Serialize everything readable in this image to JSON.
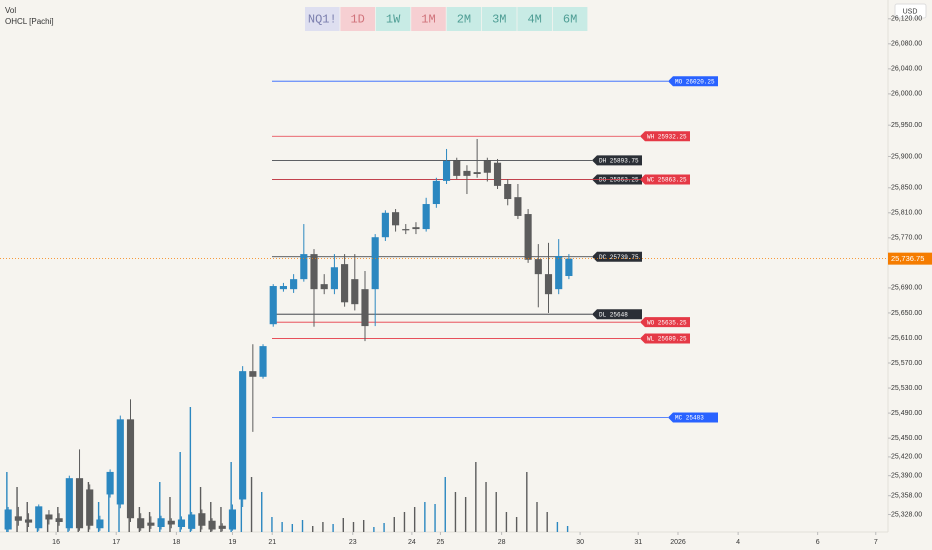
{
  "chart_data": {
    "type": "candlestick",
    "indicators": [
      "Vol",
      "OHCL [Pachi]"
    ],
    "currency": "USD",
    "toolbar": [
      {
        "label": "NQ1!",
        "background": "#dedff0",
        "color": "#7b7fae"
      },
      {
        "label": "1D",
        "background": "#f6cfd2",
        "color": "#d0737b"
      },
      {
        "label": "1W",
        "background": "#c8ebe5",
        "color": "#4f9e95"
      },
      {
        "label": "1M",
        "background": "#f6cfd2",
        "color": "#d0737b"
      },
      {
        "label": "2M",
        "background": "#c8ebe5",
        "color": "#4f9e95"
      },
      {
        "label": "3M",
        "background": "#c8ebe5",
        "color": "#4f9e95"
      },
      {
        "label": "4M",
        "background": "#c8ebe5",
        "color": "#4f9e95"
      },
      {
        "label": "6M",
        "background": "#c8ebe5",
        "color": "#4f9e95"
      }
    ],
    "x": [
      0,
      1,
      2,
      3,
      4,
      5,
      6,
      7,
      8,
      9,
      10,
      11,
      12,
      13,
      14,
      15,
      16,
      17,
      18,
      19,
      20,
      21,
      22,
      23,
      24,
      25,
      26,
      27,
      28,
      29,
      30,
      31,
      32,
      33,
      34,
      35,
      36,
      37,
      38,
      39,
      40,
      41,
      42,
      43,
      44,
      45,
      46,
      47,
      48,
      49,
      50,
      51,
      52,
      53,
      54,
      55
    ],
    "open": [
      25304,
      25325,
      25320,
      25306,
      25328,
      25322,
      25306,
      25386,
      25368,
      25306,
      25360,
      25344,
      25480,
      25322,
      25315,
      25308,
      25318,
      25308,
      25305,
      25330,
      25318,
      25310,
      25304,
      25352,
      25557,
      25548,
      25632,
      25688,
      25688,
      25704,
      25744,
      25696,
      25688,
      25728,
      25704,
      25688,
      25688,
      25771,
      25811,
      25784,
      25787,
      25784,
      25824,
      25861,
      25894,
      25877,
      25875,
      25894,
      25890,
      25856,
      25835,
      25808,
      25736,
      25712,
      25688,
      25709
    ],
    "high": [
      25340,
      25340,
      25330,
      25344,
      25335,
      25330,
      25390,
      25432,
      25376,
      25326,
      25400,
      25486,
      25512,
      25330,
      25325,
      25326,
      25322,
      25325,
      25332,
      25336,
      25322,
      25314,
      25344,
      25565,
      25600,
      25600,
      25696,
      25698,
      25712,
      25792,
      25752,
      25712,
      25744,
      25744,
      25744,
      25717,
      25776,
      25814,
      25816,
      25792,
      25795,
      25834,
      25866,
      25912,
      25898,
      25886,
      25928,
      25898,
      25896,
      25864,
      25856,
      25816,
      25760,
      25762,
      25768,
      25744
    ],
    "low": [
      25300,
      25310,
      25308,
      25302,
      25312,
      25310,
      25302,
      25302,
      25304,
      25302,
      25355,
      25338,
      25316,
      25302,
      25305,
      25304,
      25306,
      25304,
      25302,
      25304,
      25301,
      25301,
      25302,
      25340,
      25460,
      25545,
      25628,
      25684,
      25682,
      25700,
      25628,
      25680,
      25680,
      25660,
      25654,
      25605,
      25629,
      25765,
      25780,
      25776,
      25776,
      25780,
      25818,
      25856,
      25864,
      25840,
      25866,
      25860,
      25848,
      25822,
      25800,
      25730,
      25659,
      25650,
      25680,
      25704
    ],
    "close": [
      25336,
      25318,
      25315,
      25341,
      25320,
      25316,
      25386,
      25306,
      25310,
      25320,
      25396,
      25480,
      25322,
      25306,
      25310,
      25322,
      25312,
      25320,
      25328,
      25310,
      25304,
      25305,
      25336,
      25557,
      25548,
      25597,
      25693,
      25693,
      25704,
      25744,
      25688,
      25688,
      25723,
      25667,
      25664,
      25629,
      25771,
      25810,
      25790,
      25782,
      25784,
      25824,
      25861,
      25893,
      25869,
      25869,
      25872,
      25874,
      25853,
      25832,
      25805,
      25735,
      25712,
      25680,
      25741,
      25736.75
    ],
    "volume": [
      60,
      45,
      30,
      20,
      15,
      25,
      40,
      35,
      50,
      30,
      45,
      55,
      60,
      25,
      20,
      50,
      35,
      80,
      125,
      45,
      30,
      25,
      70,
      60,
      55,
      40,
      15,
      10,
      8,
      12,
      6,
      10,
      8,
      14,
      10,
      12,
      5,
      9,
      15,
      20,
      25,
      30,
      28,
      55,
      40,
      35,
      70,
      50,
      40,
      20,
      15,
      60,
      30,
      20,
      10,
      6
    ],
    "up_color": "#2b87c0",
    "down_color": "#5c5c5c",
    "xlim": [
      -0.8,
      86.3
    ],
    "xticks": [
      {
        "value": 4.7,
        "label": "16"
      },
      {
        "value": 10.6,
        "label": "17"
      },
      {
        "value": 16.5,
        "label": "18"
      },
      {
        "value": 22,
        "label": "19"
      },
      {
        "value": 25.9,
        "label": "21"
      },
      {
        "value": 33.8,
        "label": "23"
      },
      {
        "value": 39.6,
        "label": "24"
      },
      {
        "value": 42.4,
        "label": "25"
      },
      {
        "value": 48.4,
        "label": "28"
      },
      {
        "value": 56.1,
        "label": "30"
      },
      {
        "value": 61.8,
        "label": "31"
      },
      {
        "value": 65.7,
        "label": "2026"
      },
      {
        "value": 71.6,
        "label": "4"
      },
      {
        "value": 79.4,
        "label": "6"
      },
      {
        "value": 85.1,
        "label": "7"
      }
    ],
    "ylim": [
      25300,
      26150
    ],
    "yticks": [
      {
        "value": 26120,
        "label": "26,120.00"
      },
      {
        "value": 26080,
        "label": "26,080.00"
      },
      {
        "value": 26040,
        "label": "26,040.00"
      },
      {
        "value": 26000,
        "label": "26,000.00"
      },
      {
        "value": 25950,
        "label": "25,950.00"
      },
      {
        "value": 25900,
        "label": "25,900.00"
      },
      {
        "value": 25850,
        "label": "25,850.00"
      },
      {
        "value": 25810,
        "label": "25,810.00"
      },
      {
        "value": 25770,
        "label": "25,770.00"
      },
      {
        "value": 25690,
        "label": "25,690.00"
      },
      {
        "value": 25650,
        "label": "25,650.00"
      },
      {
        "value": 25610,
        "label": "25,610.00"
      },
      {
        "value": 25570,
        "label": "25,570.00"
      },
      {
        "value": 25530,
        "label": "25,530.00"
      },
      {
        "value": 25490,
        "label": "25,490.00"
      },
      {
        "value": 25450,
        "label": "25,450.00"
      },
      {
        "value": 25420,
        "label": "25,420.00"
      },
      {
        "value": 25390,
        "label": "25,390.00"
      },
      {
        "value": 25358,
        "label": "25,358.00"
      },
      {
        "value": 25328,
        "label": "25,328.00"
      }
    ],
    "grid": false,
    "last_price": {
      "value": 25736.75,
      "label": "25,736.75",
      "color": "#f57c00"
    },
    "levels": [
      {
        "label": "MO 26020.25",
        "value": 26020.25,
        "color": "#2962ff"
      },
      {
        "label": "WH 25932.25",
        "value": 25932.25,
        "color": "#e53946"
      },
      {
        "label": "DH 25893.75",
        "value": 25893.75,
        "color": "#2b2f36"
      },
      {
        "label": "DO 25863.25",
        "value": 25863.25,
        "color": "#2b2f36"
      },
      {
        "label": "WC 25863.25",
        "value": 25863.25,
        "color": "#e53946"
      },
      {
        "label": "DC 25739.75",
        "value": 25739.75,
        "color": "#2b2f36"
      },
      {
        "label": "DL 25648",
        "value": 25648,
        "color": "#2b2f36"
      },
      {
        "label": "WO 25635.25",
        "value": 25635.25,
        "color": "#e53946"
      },
      {
        "label": "WL 25609.25",
        "value": 25609.25,
        "color": "#e53946"
      },
      {
        "label": "MC 25483",
        "value": 25483,
        "color": "#2962ff"
      }
    ]
  }
}
